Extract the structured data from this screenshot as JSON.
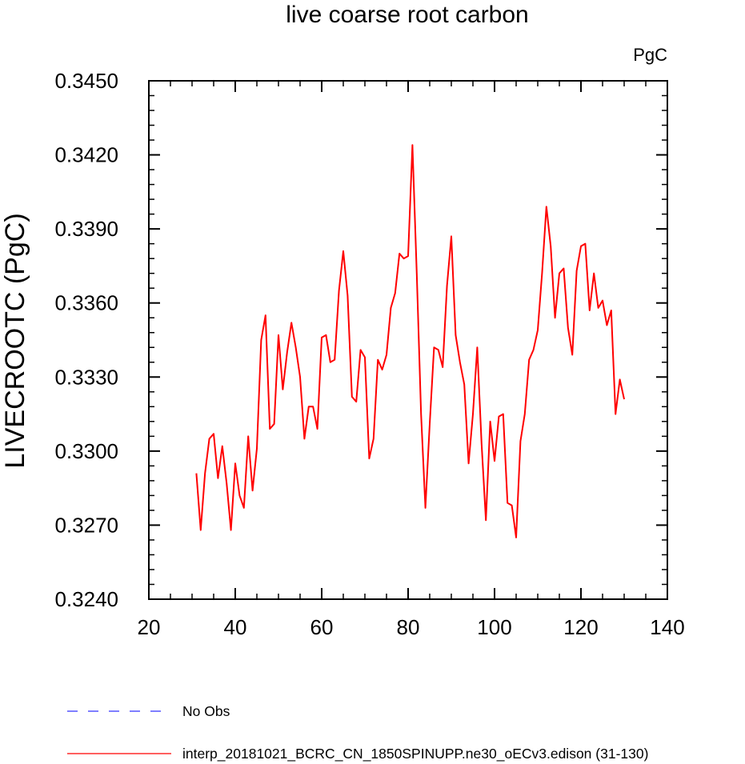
{
  "chart_data": {
    "type": "line",
    "title": "live coarse root carbon",
    "units_label": "PgC",
    "xlabel": "",
    "ylabel": "LIVECROOTC  (PgC)",
    "xlim": [
      20,
      140
    ],
    "ylim": [
      0.324,
      0.345
    ],
    "x_ticks": [
      20,
      40,
      60,
      80,
      100,
      120,
      140
    ],
    "x_tick_labels": [
      "20",
      "40",
      "60",
      "80",
      "100",
      "120",
      "140"
    ],
    "y_ticks": [
      0.324,
      0.327,
      0.33,
      0.333,
      0.336,
      0.339,
      0.342,
      0.345
    ],
    "y_tick_labels": [
      "0.3240",
      "0.3270",
      "0.3300",
      "0.3330",
      "0.3360",
      "0.3390",
      "0.3420",
      "0.3450"
    ],
    "x_minor_step": 5,
    "y_minor_step": 0.0006,
    "grid": false,
    "legend_position": "bottom-left",
    "series": [
      {
        "name": "interp_20181021_BCRC_CN_1850SPINUPP.ne30_oECv3.edison (31-130)",
        "color": "#ff0000",
        "dash": "solid",
        "x": [
          31,
          32,
          33,
          34,
          35,
          36,
          37,
          38,
          39,
          40,
          41,
          42,
          43,
          44,
          45,
          46,
          47,
          48,
          49,
          50,
          51,
          52,
          53,
          54,
          55,
          56,
          57,
          58,
          59,
          60,
          61,
          62,
          63,
          64,
          65,
          66,
          67,
          68,
          69,
          70,
          71,
          72,
          73,
          74,
          75,
          76,
          77,
          78,
          79,
          80,
          81,
          82,
          83,
          84,
          85,
          86,
          87,
          88,
          89,
          90,
          91,
          92,
          93,
          94,
          95,
          96,
          97,
          98,
          99,
          100,
          101,
          102,
          103,
          104,
          105,
          106,
          107,
          108,
          109,
          110,
          111,
          112,
          113,
          114,
          115,
          116,
          117,
          118,
          119,
          120,
          121,
          122,
          123,
          124,
          125,
          126,
          127,
          128,
          129,
          130
        ],
        "y": [
          0.3291,
          0.3268,
          0.3291,
          0.3305,
          0.3307,
          0.3289,
          0.3302,
          0.3287,
          0.3268,
          0.3295,
          0.3282,
          0.3277,
          0.3306,
          0.3284,
          0.3301,
          0.3345,
          0.3355,
          0.3309,
          0.3311,
          0.3347,
          0.3325,
          0.334,
          0.3352,
          0.3342,
          0.333,
          0.3305,
          0.3318,
          0.3318,
          0.3309,
          0.3346,
          0.3347,
          0.3336,
          0.3337,
          0.3365,
          0.3381,
          0.3363,
          0.3322,
          0.332,
          0.3341,
          0.3338,
          0.3297,
          0.3305,
          0.3337,
          0.3333,
          0.3339,
          0.3358,
          0.3364,
          0.338,
          0.3378,
          0.3379,
          0.3424,
          0.3372,
          0.3315,
          0.3277,
          0.3311,
          0.3342,
          0.3341,
          0.3334,
          0.3367,
          0.3387,
          0.3347,
          0.3336,
          0.3327,
          0.3295,
          0.3315,
          0.3342,
          0.3303,
          0.3272,
          0.3312,
          0.3296,
          0.3314,
          0.3315,
          0.3279,
          0.3278,
          0.3265,
          0.3304,
          0.3315,
          0.3337,
          0.3341,
          0.3349,
          0.3372,
          0.3399,
          0.3383,
          0.3354,
          0.3372,
          0.3374,
          0.335,
          0.3339,
          0.3373,
          0.3383,
          0.3384,
          0.3357,
          0.3372,
          0.3358,
          0.3361,
          0.3351,
          0.3357,
          0.3315,
          0.3329,
          0.3321
        ]
      }
    ],
    "legend": [
      {
        "label": "No Obs",
        "color": "#3333ff",
        "dash": "dashed"
      },
      {
        "label": "interp_20181021_BCRC_CN_1850SPINUPP.ne30_oECv3.edison (31-130)",
        "color": "#ff0000",
        "dash": "solid"
      }
    ]
  }
}
